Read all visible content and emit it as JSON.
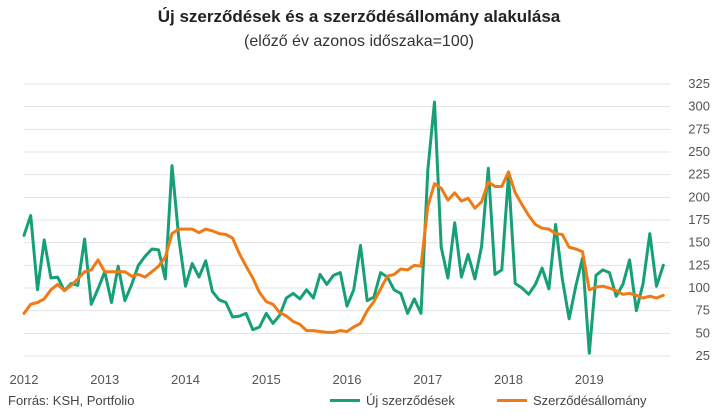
{
  "chart_data": {
    "type": "line",
    "title": "Új szerződések és a szerződésállomány alakulása",
    "subtitle": "(előző év azonos időszaka=100)",
    "source": "Forrás: KSH, Portfolio",
    "ylim": [
      25,
      325
    ],
    "yticks": [
      25,
      50,
      75,
      100,
      125,
      150,
      175,
      200,
      225,
      250,
      275,
      300,
      325
    ],
    "xtick_labels": [
      "2012",
      "2013",
      "2014",
      "2015",
      "2016",
      "2017",
      "2018",
      "2019"
    ],
    "x_start_year": 2012,
    "months": 96,
    "grid": true,
    "legend_position": "bottom",
    "series": [
      {
        "name": "Új szerződések",
        "color": "#17a078",
        "values": [
          158,
          180,
          98,
          153,
          111,
          112,
          97,
          105,
          103,
          154,
          82,
          99,
          118,
          84,
          124,
          86,
          104,
          125,
          135,
          143,
          142,
          110,
          235,
          155,
          102,
          127,
          112,
          130,
          96,
          87,
          84,
          68,
          69,
          72,
          54,
          57,
          72,
          61,
          70,
          89,
          94,
          88,
          98,
          89,
          115,
          104,
          114,
          117,
          80,
          98,
          147,
          86,
          90,
          117,
          112,
          98,
          94,
          72,
          88,
          72,
          230,
          305,
          145,
          111,
          172,
          112,
          137,
          110,
          146,
          232,
          115,
          120,
          225,
          105,
          100,
          93,
          104,
          122,
          99,
          170,
          110,
          66,
          102,
          133,
          28,
          114,
          120,
          117,
          91,
          104,
          131,
          75,
          105,
          160,
          102,
          125
        ]
      },
      {
        "name": "Szerződésállomány",
        "color": "#f07b16",
        "values": [
          72,
          82,
          84,
          88,
          98,
          104,
          97,
          103,
          110,
          118,
          120,
          131,
          118,
          118,
          118,
          118,
          113,
          115,
          112,
          118,
          124,
          134,
          160,
          165,
          165,
          165,
          161,
          165,
          163,
          160,
          159,
          155,
          138,
          124,
          111,
          95,
          85,
          82,
          73,
          69,
          63,
          60,
          53,
          53,
          52,
          51,
          51,
          53,
          52,
          57,
          61,
          75,
          85,
          99,
          113,
          115,
          121,
          120,
          125,
          124,
          190,
          215,
          210,
          197,
          205,
          196,
          199,
          188,
          195,
          217,
          212,
          212,
          228,
          205,
          192,
          180,
          170,
          166,
          165,
          160,
          159,
          145,
          143,
          140,
          98,
          101,
          102,
          100,
          97,
          93,
          94,
          92,
          89,
          91,
          89,
          92
        ]
      }
    ]
  }
}
